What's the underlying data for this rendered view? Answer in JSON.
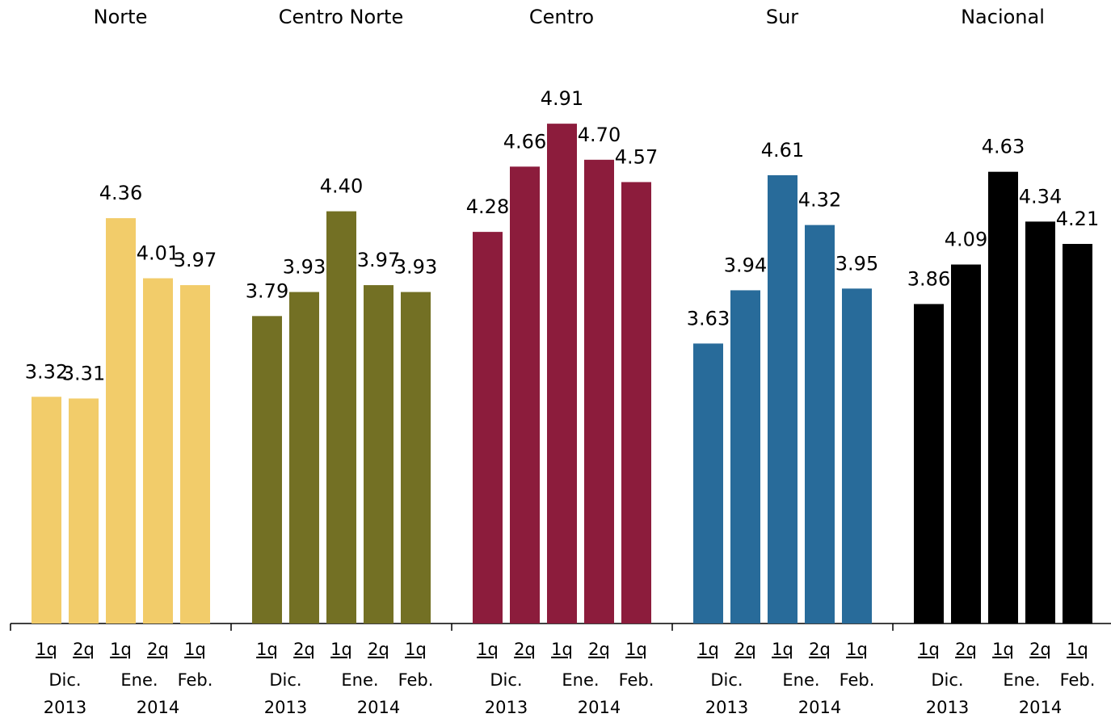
{
  "chart_data": [
    {
      "type": "bar",
      "title": "Norte",
      "categories": [
        "1q",
        "2q",
        "1q",
        "2q",
        "1q"
      ],
      "months": [
        "Dic.",
        "Ene.",
        "Feb."
      ],
      "years": [
        "2013",
        "2014"
      ],
      "values": [
        3.32,
        3.31,
        4.36,
        4.01,
        3.97
      ],
      "value_labels": [
        "3.32",
        "3.31",
        "4.36",
        "4.01",
        "3.97"
      ],
      "color": "#f2cc6a",
      "ylim": [
        2,
        5
      ]
    },
    {
      "type": "bar",
      "title": "Centro Norte",
      "categories": [
        "1q",
        "2q",
        "1q",
        "2q",
        "1q"
      ],
      "months": [
        "Dic.",
        "Ene.",
        "Feb."
      ],
      "years": [
        "2013",
        "2014"
      ],
      "values": [
        3.79,
        3.93,
        4.4,
        3.97,
        3.93
      ],
      "value_labels": [
        "3.79",
        "3.93",
        "4.40",
        "3.97",
        "3.93"
      ],
      "color": "#737024",
      "ylim": [
        2,
        5
      ]
    },
    {
      "type": "bar",
      "title": "Centro",
      "categories": [
        "1q",
        "2q",
        "1q",
        "2q",
        "1q"
      ],
      "months": [
        "Dic.",
        "Ene.",
        "Feb."
      ],
      "years": [
        "2013",
        "2014"
      ],
      "values": [
        4.28,
        4.66,
        4.91,
        4.7,
        4.57
      ],
      "value_labels": [
        "4.28",
        "4.66",
        "4.91",
        "4.70",
        "4.57"
      ],
      "color": "#8c1c3c",
      "ylim": [
        2,
        5
      ]
    },
    {
      "type": "bar",
      "title": "Sur",
      "categories": [
        "1q",
        "2q",
        "1q",
        "2q",
        "1q"
      ],
      "months": [
        "Dic.",
        "Ene.",
        "Feb."
      ],
      "years": [
        "2013",
        "2014"
      ],
      "values": [
        3.63,
        3.94,
        4.61,
        4.32,
        3.95
      ],
      "value_labels": [
        "3.63",
        "3.94",
        "4.61",
        "4.32",
        "3.95"
      ],
      "color": "#286b9a",
      "ylim": [
        2,
        5
      ]
    },
    {
      "type": "bar",
      "title": "Nacional",
      "categories": [
        "1q",
        "2q",
        "1q",
        "2q",
        "1q"
      ],
      "months": [
        "Dic.",
        "Ene.",
        "Feb."
      ],
      "years": [
        "2013",
        "2014"
      ],
      "values": [
        3.86,
        4.09,
        4.63,
        4.34,
        4.21
      ],
      "value_labels": [
        "3.86",
        "4.09",
        "4.63",
        "4.34",
        "4.21"
      ],
      "color": "#000000",
      "ylim": [
        2,
        5
      ]
    }
  ]
}
